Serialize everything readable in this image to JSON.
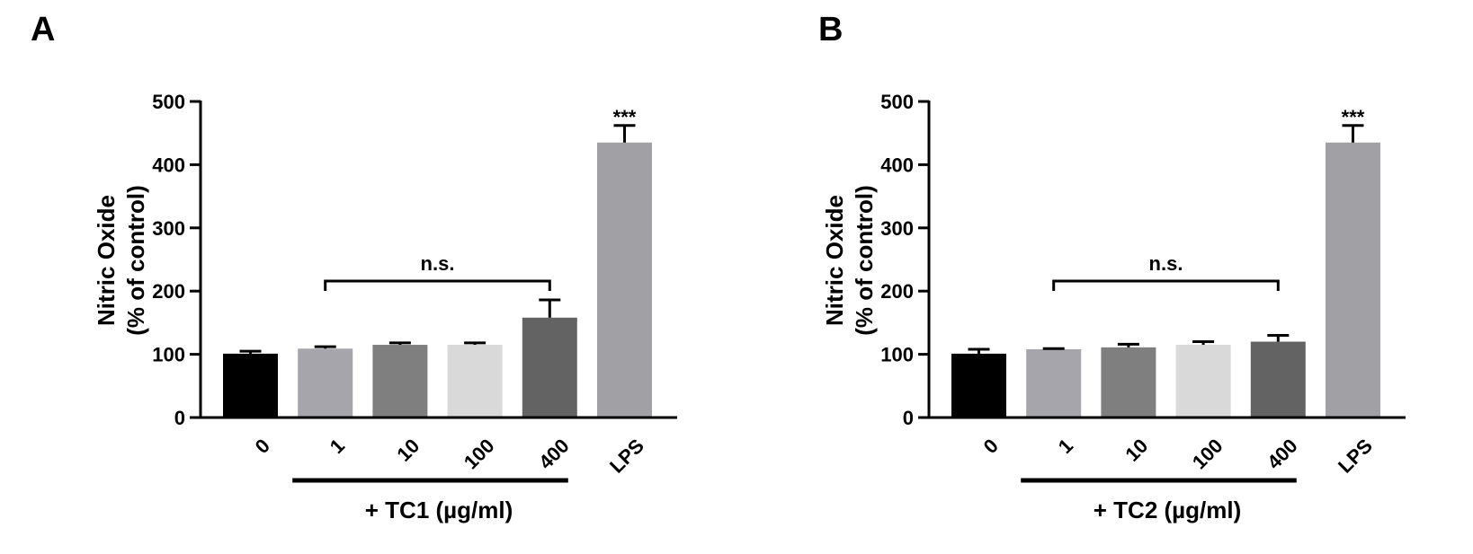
{
  "chart_data": [
    {
      "type": "bar",
      "panel_label": "A",
      "ylabel_line1": "Nitric Oxide",
      "ylabel_line2": "(% of control)",
      "ylim": [
        0,
        500
      ],
      "yticks": [
        "0",
        "100",
        "200",
        "300",
        "400",
        "500"
      ],
      "categories": [
        "0",
        "1",
        "10",
        "100",
        "400",
        "LPS"
      ],
      "values": [
        101,
        109,
        115,
        115,
        158,
        435
      ],
      "errors": [
        4,
        3,
        3,
        3,
        28,
        27
      ],
      "colors": [
        "#000000",
        "#a5a5ab",
        "#7f7f7f",
        "#d9d9d9",
        "#636363",
        "#a0a0a5"
      ],
      "significance": [
        {
          "text": "n.s.",
          "from": 1,
          "to": 4
        },
        {
          "text": "***",
          "bar": 5
        }
      ],
      "treatment_label": "+ TC1 (µg/ml)",
      "treatment_span": [
        1,
        4
      ]
    },
    {
      "type": "bar",
      "panel_label": "B",
      "ylabel_line1": "Nitric Oxide",
      "ylabel_line2": "(% of control)",
      "ylim": [
        0,
        500
      ],
      "yticks": [
        "0",
        "100",
        "200",
        "300",
        "400",
        "500"
      ],
      "categories": [
        "0",
        "1",
        "10",
        "100",
        "400",
        "LPS"
      ],
      "values": [
        101,
        108,
        111,
        115,
        120,
        435
      ],
      "errors": [
        7,
        1,
        5,
        5,
        10,
        27
      ],
      "colors": [
        "#000000",
        "#a5a5ab",
        "#7f7f7f",
        "#d9d9d9",
        "#636363",
        "#a0a0a5"
      ],
      "significance": [
        {
          "text": "n.s.",
          "from": 1,
          "to": 4
        },
        {
          "text": "***",
          "bar": 5
        }
      ],
      "treatment_label": "+ TC2 (µg/ml)",
      "treatment_span": [
        1,
        4
      ]
    }
  ]
}
